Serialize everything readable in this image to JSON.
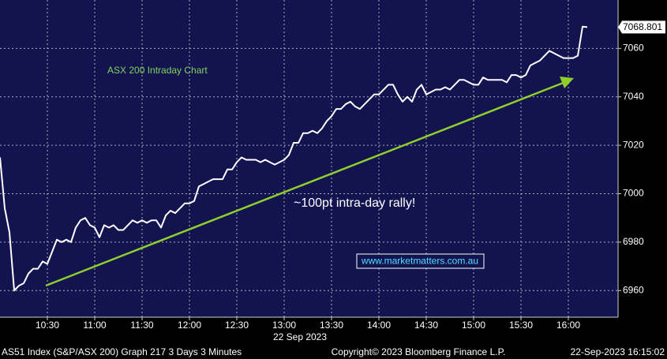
{
  "chart_data": {
    "type": "line",
    "title": "ASX 200 Intraday Chart",
    "annotation": "~100pt intra-day rally!",
    "watermark": "www.marketmatters.com.au",
    "date_label": "22 Sep 2023",
    "last_price": 7068.801,
    "x": [
      600,
      603,
      606,
      609,
      612,
      615,
      618,
      621,
      624,
      627,
      630,
      633,
      636,
      639,
      642,
      645,
      648,
      651,
      654,
      657,
      660,
      663,
      666,
      669,
      672,
      675,
      678,
      681,
      684,
      687,
      690,
      693,
      696,
      699,
      702,
      705,
      708,
      711,
      714,
      717,
      720,
      723,
      726,
      729,
      732,
      735,
      738,
      741,
      744,
      747,
      750,
      753,
      756,
      759,
      762,
      765,
      768,
      771,
      774,
      777,
      780,
      783,
      786,
      789,
      792,
      795,
      798,
      801,
      804,
      807,
      810,
      813,
      816,
      819,
      822,
      825,
      828,
      831,
      834,
      837,
      840,
      843,
      846,
      849,
      852,
      855,
      858,
      861,
      864,
      867,
      870,
      873,
      876,
      879,
      882,
      885,
      888,
      891,
      894,
      897,
      900,
      903,
      906,
      909,
      912,
      915,
      918,
      921,
      924,
      927,
      930,
      933,
      936,
      939,
      942,
      945,
      948,
      951,
      954,
      957,
      960,
      963,
      966,
      969,
      972
    ],
    "series": [
      {
        "name": "S&P/ASX 200",
        "color": "#ffffff",
        "values": [
          7015,
          6994,
          6984,
          6960,
          6962,
          6963,
          6967,
          6969,
          6969,
          6972,
          6971,
          6976,
          6981,
          6980,
          6981,
          6980,
          6986,
          6989,
          6990,
          6987,
          6986,
          6982,
          6987,
          6986,
          6987,
          6985,
          6985,
          6987,
          6989,
          6988,
          6989,
          6988,
          6989,
          6989,
          6986,
          6991,
          6993,
          6992,
          6994,
          6996,
          6996,
          6997,
          7003,
          7004,
          7005,
          7006,
          7006,
          7006,
          7010,
          7010,
          7013,
          7015,
          7014,
          7014,
          7014,
          7013,
          7014,
          7013,
          7012,
          7013,
          7014,
          7016,
          7021,
          7021,
          7025,
          7025,
          7026,
          7025,
          7027,
          7030,
          7032,
          7035,
          7035,
          7037,
          7038,
          7036,
          7035,
          7037,
          7039,
          7041,
          7041,
          7043,
          7045,
          7045,
          7041,
          7038,
          7040,
          7038,
          7043,
          7045,
          7041,
          7042,
          7043,
          7043,
          7044,
          7043,
          7045,
          7047,
          7047,
          7046,
          7045,
          7045,
          7048,
          7047,
          7047,
          7047,
          7047,
          7046,
          7049,
          7049,
          7048,
          7049,
          7053,
          7054,
          7055,
          7057,
          7059,
          7058,
          7057,
          7056,
          7056,
          7056,
          7057,
          7069,
          7068.801
        ]
      }
    ],
    "xlim": [
      600,
      991.5
    ],
    "ylim": [
      6949,
      7080
    ],
    "xticks": [
      {
        "value": 630,
        "label": "10:30"
      },
      {
        "value": 660,
        "label": "11:00"
      },
      {
        "value": 690,
        "label": "11:30"
      },
      {
        "value": 720,
        "label": "12:00"
      },
      {
        "value": 750,
        "label": "12:30"
      },
      {
        "value": 780,
        "label": "13:00"
      },
      {
        "value": 810,
        "label": "13:30"
      },
      {
        "value": 840,
        "label": "14:00"
      },
      {
        "value": 870,
        "label": "14:30"
      },
      {
        "value": 900,
        "label": "15:00"
      },
      {
        "value": 930,
        "label": "15:30"
      },
      {
        "value": 960,
        "label": "16:00"
      }
    ],
    "yticks": [
      6960,
      6980,
      7000,
      7020,
      7040,
      7060
    ],
    "grid": true,
    "footer": {
      "left": "AS51 Index (S&P/ASX 200) Graph 217 3 Days 3 Minutes",
      "center": "Copyright© 2023 Bloomberg Finance L.P.",
      "right": "22-Sep-2023 16:15:02"
    }
  }
}
